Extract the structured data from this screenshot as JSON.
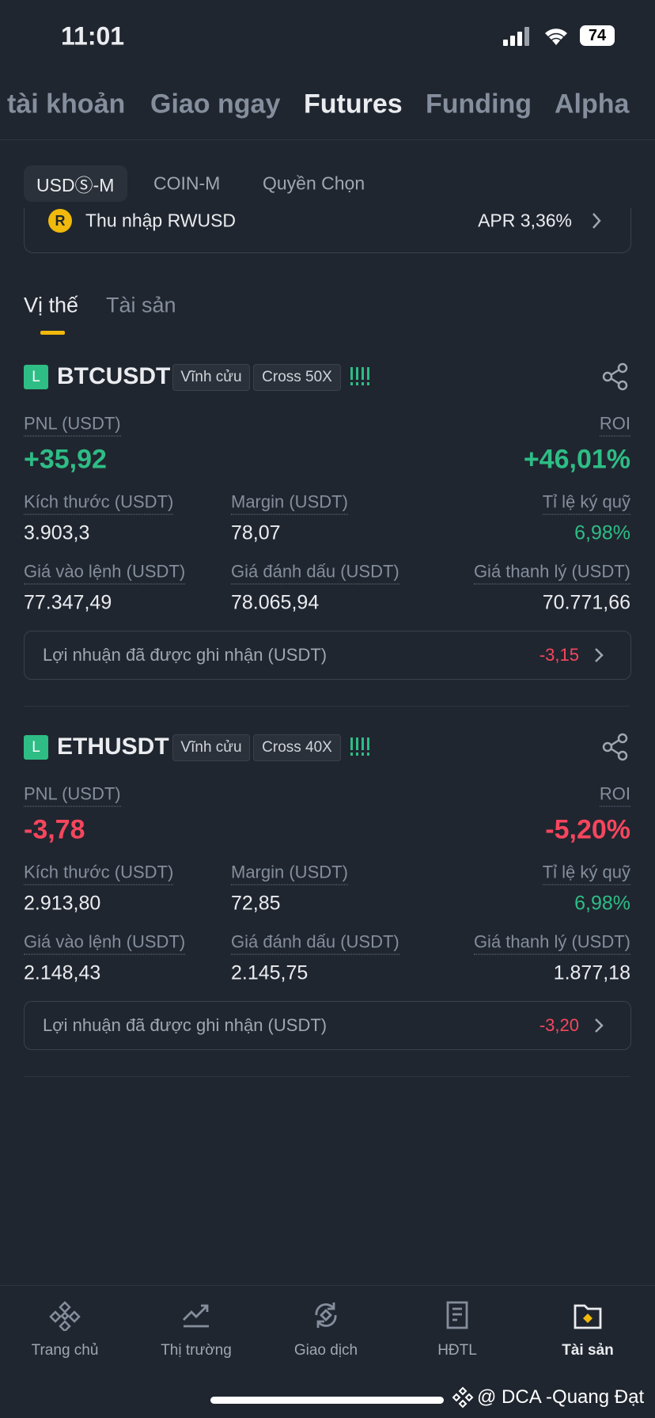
{
  "status": {
    "time": "11:01",
    "battery": "74"
  },
  "top_tabs": [
    "tài khoản",
    "Giao ngay",
    "Futures",
    "Funding",
    "Alpha"
  ],
  "sub_tabs": [
    "USDⓈ-M",
    "COIN-M",
    "Quyền Chọn"
  ],
  "banner": {
    "label": "Thu nhập RWUSD",
    "apr": "APR 3,36%"
  },
  "position_tabs": [
    "Vị thế",
    "Tài sản"
  ],
  "positions": [
    {
      "side": "L",
      "symbol": "BTCUSDT",
      "type": "Vĩnh cửu",
      "leverage": "Cross 50X",
      "pnl_label": "PNL (USDT)",
      "pnl": "+35,92",
      "roi_label": "ROI",
      "roi": "+46,01%",
      "fields": [
        {
          "label": "Kích thước (USDT)",
          "value": "3.903,3"
        },
        {
          "label": "Margin (USDT)",
          "value": "78,07"
        },
        {
          "label": "Tỉ lệ ký quỹ",
          "value": "6,98%"
        },
        {
          "label": "Giá vào lệnh (USDT)",
          "value": "77.347,49"
        },
        {
          "label": "Giá đánh dấu (USDT)",
          "value": "78.065,94"
        },
        {
          "label": "Giá thanh lý (USDT)",
          "value": "70.771,66"
        }
      ],
      "realized_label": "Lợi nhuận đã được ghi nhận (USDT)",
      "realized": "-3,15"
    },
    {
      "side": "L",
      "symbol": "ETHUSDT",
      "type": "Vĩnh cửu",
      "leverage": "Cross 40X",
      "pnl_label": "PNL (USDT)",
      "pnl": "-3,78",
      "roi_label": "ROI",
      "roi": "-5,20%",
      "fields": [
        {
          "label": "Kích thước (USDT)",
          "value": "2.913,80"
        },
        {
          "label": "Margin (USDT)",
          "value": "72,85"
        },
        {
          "label": "Tỉ lệ ký quỹ",
          "value": "6,98%"
        },
        {
          "label": "Giá vào lệnh (USDT)",
          "value": "2.148,43"
        },
        {
          "label": "Giá đánh dấu (USDT)",
          "value": "2.145,75"
        },
        {
          "label": "Giá thanh lý (USDT)",
          "value": "1.877,18"
        }
      ],
      "realized_label": "Lợi nhuận đã được ghi nhận (USDT)",
      "realized": "-3,20"
    }
  ],
  "nav": [
    "Trang chủ",
    "Thị trường",
    "Giao dịch",
    "HĐTL",
    "Tài sản"
  ],
  "watermark": "@ DCA  -Quang Đạt"
}
